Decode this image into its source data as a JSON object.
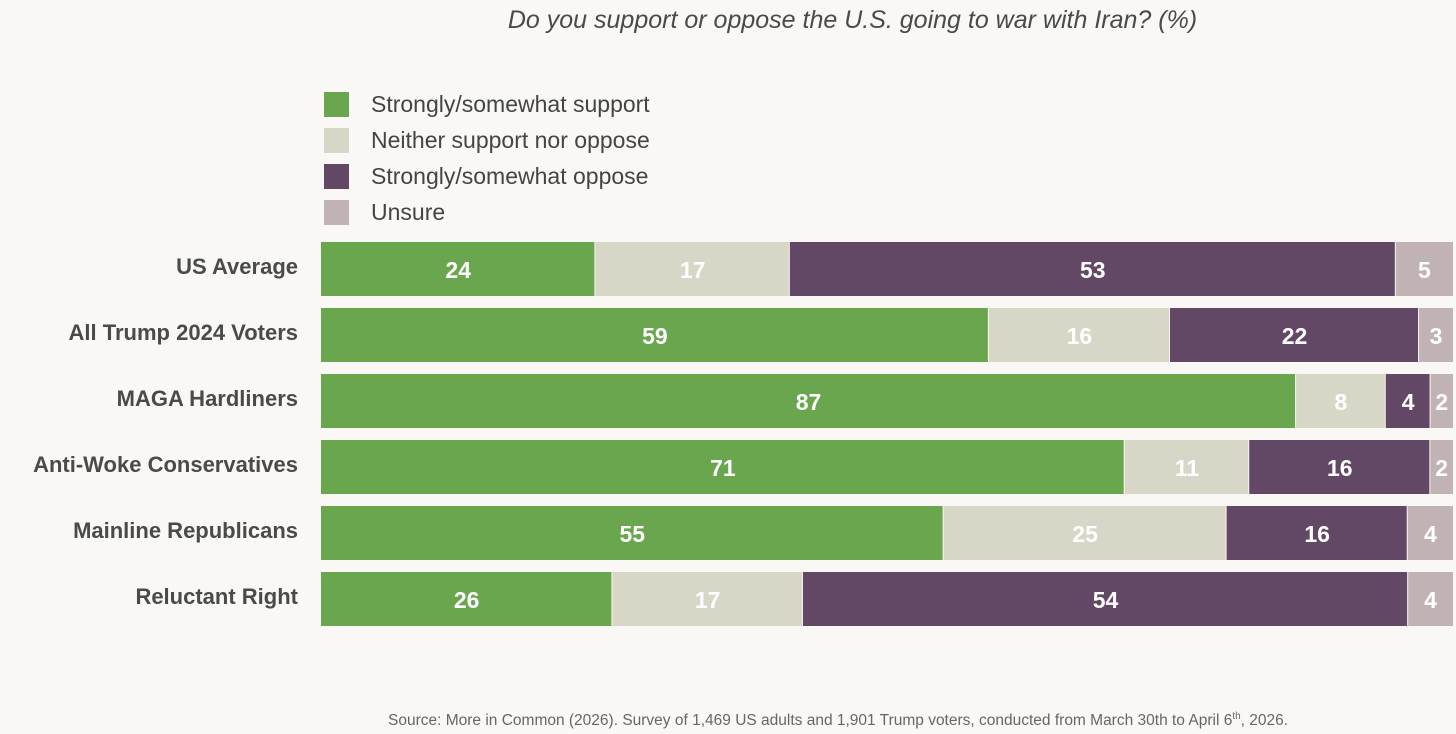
{
  "chart_data": {
    "type": "bar",
    "orientation": "horizontal",
    "stacked": true,
    "title": "Do you support or oppose the U.S. going to war with Iran? (%)",
    "categories": [
      "US Average",
      "All Trump 2024 Voters",
      "MAGA Hardliners",
      "Anti-Woke Conservatives",
      "Mainline Republicans",
      "Reluctant Right"
    ],
    "series": [
      {
        "name": "Strongly/somewhat support",
        "color": "#6aa64e",
        "values": [
          24,
          59,
          87,
          71,
          55,
          26
        ]
      },
      {
        "name": "Neither support nor oppose",
        "color": "#d8d6c6",
        "values": [
          17,
          16,
          8,
          11,
          25,
          17
        ]
      },
      {
        "name": "Strongly/somewhat oppose",
        "color": "#634866",
        "values": [
          53,
          22,
          4,
          16,
          16,
          54
        ]
      },
      {
        "name": "Unsure",
        "color": "#c1b3b3",
        "values": [
          5,
          3,
          2,
          2,
          4,
          4
        ]
      }
    ],
    "legend": "top-left",
    "grid": false,
    "xlim": [
      0,
      100
    ]
  },
  "source": {
    "text": "Source: More in Common (2026). Survey of 1,469 US adults and 1,901 Trump voters, conducted from March 30th to April 6",
    "sup": "th",
    "tail": ", 2026."
  }
}
